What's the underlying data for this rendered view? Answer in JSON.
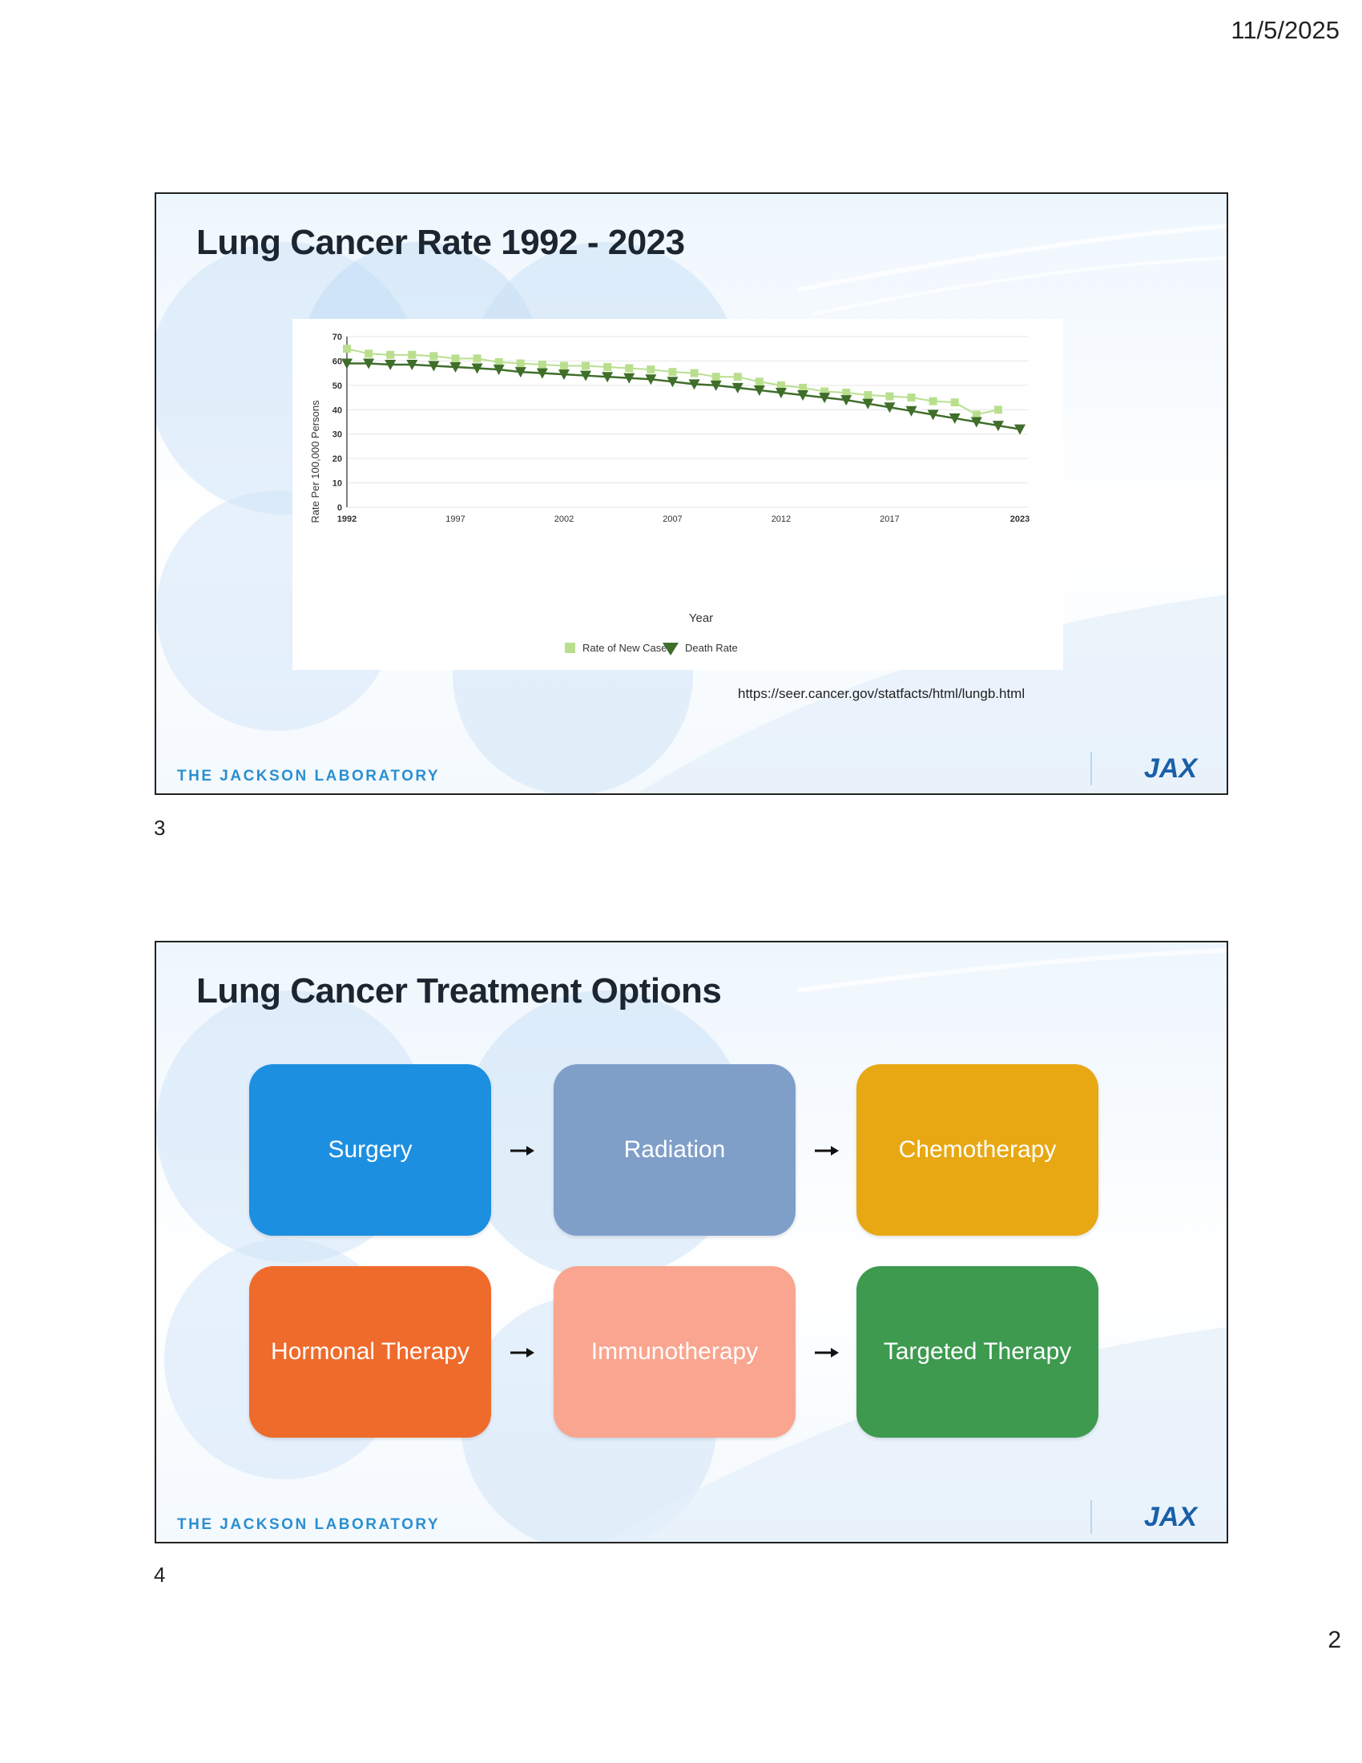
{
  "header": {
    "date": "11/5/2025"
  },
  "page": {
    "number": "2"
  },
  "slides": [
    {
      "number": "3",
      "title": "Lung Cancer Rate 1992 - 2023",
      "footer": "THE JACKSON LABORATORY",
      "source_url": "https://seer.cancer.gov/statfacts/html/lungb.html",
      "logo_text": "JAX"
    },
    {
      "number": "4",
      "title": "Lung Cancer Treatment Options",
      "footer": "THE JACKSON LABORATORY",
      "logo_text": "JAX",
      "options": [
        {
          "label": "Surgery",
          "color": "#1d8fe0"
        },
        {
          "label": "Radiation",
          "color": "#7f9fc9"
        },
        {
          "label": "Chemotherapy",
          "color": "#e8a813"
        },
        {
          "label": "Hormonal Therapy",
          "color": "#ef6b2c"
        },
        {
          "label": "Immunotherapy",
          "color": "#f9a58f"
        },
        {
          "label": "Targeted Therapy",
          "color": "#3d9a4f"
        }
      ]
    }
  ],
  "chart_data": {
    "type": "line",
    "title": "",
    "xlabel": "Year",
    "ylabel": "Rate Per 100,000 Persons",
    "xlim": [
      1992,
      2023
    ],
    "ylim": [
      0,
      70
    ],
    "x_ticks": [
      "1992",
      "1997",
      "2002",
      "2007",
      "2012",
      "2017",
      "2023"
    ],
    "y_ticks": [
      "0",
      "10",
      "20",
      "30",
      "40",
      "50",
      "60",
      "70"
    ],
    "series": [
      {
        "name": "Rate of New Cases",
        "color": "#b9df8e",
        "marker": "square",
        "x": [
          1992,
          1993,
          1994,
          1995,
          1996,
          1997,
          1998,
          1999,
          2000,
          2001,
          2002,
          2003,
          2004,
          2005,
          2006,
          2007,
          2008,
          2009,
          2010,
          2011,
          2012,
          2013,
          2014,
          2015,
          2016,
          2017,
          2018,
          2019,
          2020,
          2021,
          2022
        ],
        "values": [
          65,
          63,
          62.5,
          62.5,
          62,
          61,
          61,
          59.5,
          59,
          58.5,
          58,
          58,
          57.5,
          57,
          56.5,
          55.5,
          55,
          53.5,
          53.5,
          51.5,
          50,
          49,
          47.5,
          47,
          46,
          45.5,
          45,
          43.5,
          43,
          38,
          40
        ]
      },
      {
        "name": "Death Rate",
        "color": "#3f6e2a",
        "marker": "triangle-down",
        "x": [
          1992,
          1993,
          1994,
          1995,
          1996,
          1997,
          1998,
          1999,
          2000,
          2001,
          2002,
          2003,
          2004,
          2005,
          2006,
          2007,
          2008,
          2009,
          2010,
          2011,
          2012,
          2013,
          2014,
          2015,
          2016,
          2017,
          2018,
          2019,
          2020,
          2021,
          2022,
          2023
        ],
        "values": [
          59,
          59,
          58.5,
          58.5,
          58,
          57.5,
          57,
          56.5,
          55.5,
          55,
          54.5,
          54,
          53.5,
          53,
          52.5,
          51.5,
          50.5,
          50,
          49,
          48,
          47,
          46,
          45,
          44,
          42.5,
          41,
          39.5,
          38,
          36.5,
          35,
          33.5,
          32
        ]
      }
    ],
    "legend": "bottom-center"
  }
}
